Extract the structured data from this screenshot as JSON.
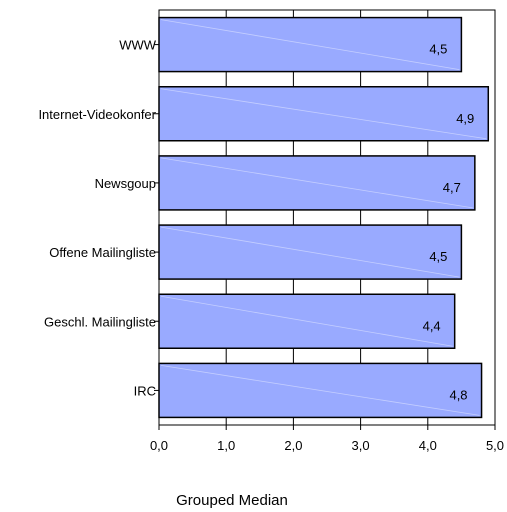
{
  "chart_data": {
    "type": "bar",
    "orientation": "horizontal",
    "categories": [
      "WWW",
      "Internet-Videokonfer",
      "Newsgoup",
      "Offene Mailingliste",
      "Geschl. Mailingliste",
      "IRC"
    ],
    "values": [
      4.5,
      4.9,
      4.7,
      4.5,
      4.4,
      4.8
    ],
    "data_labels": [
      "4,5",
      "4,9",
      "4,7",
      "4,5",
      "4,4",
      "4,8"
    ],
    "xlim": [
      0,
      5
    ],
    "xticks": [
      "0,0",
      "1,0",
      "2,0",
      "3,0",
      "4,0",
      "5,0"
    ],
    "xlabel": "Grouped Median",
    "grid": true,
    "legend": false,
    "colors": {
      "bar": "#99aaff",
      "bar_stroke": "#000000",
      "grid": "#000000"
    }
  }
}
